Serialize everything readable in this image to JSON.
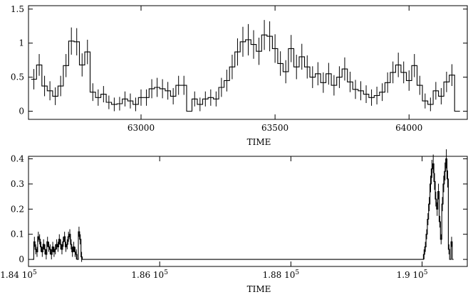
{
  "chart_data": [
    {
      "type": "line",
      "style": "histogram-step with error bars",
      "xlabel": "TIME",
      "ylabel": "",
      "xlim": [
        62580,
        64220
      ],
      "ylim": [
        -0.12,
        1.55
      ],
      "x_ticks": [
        63000,
        63500,
        64000
      ],
      "x_tick_labels": [
        "63000",
        "63500",
        "64000"
      ],
      "y_ticks": [
        0,
        0.5,
        1,
        1.5
      ],
      "y_tick_labels": [
        "0",
        "0.5",
        "1",
        "1.5"
      ],
      "series": [
        {
          "bin_width": 20,
          "x_start": 62590,
          "values": [
            0.47,
            0.68,
            0.37,
            0.3,
            0.22,
            0.37,
            0.67,
            1.03,
            1.02,
            0.68,
            0.87,
            0.28,
            0.2,
            0.25,
            0.13,
            0.1,
            0.11,
            0.18,
            0.15,
            0.1,
            0.2,
            0.2,
            0.33,
            0.35,
            0.33,
            0.3,
            0.22,
            0.38,
            0.38,
            0.0,
            0.18,
            0.1,
            0.18,
            0.2,
            0.18,
            0.35,
            0.45,
            0.65,
            0.87,
            1.02,
            1.05,
            0.98,
            0.88,
            1.12,
            1.1,
            0.92,
            0.7,
            0.58,
            0.92,
            0.65,
            0.8,
            0.65,
            0.5,
            0.55,
            0.42,
            0.55,
            0.38,
            0.5,
            0.62,
            0.43,
            0.32,
            0.3,
            0.25,
            0.2,
            0.23,
            0.28,
            0.42,
            0.57,
            0.68,
            0.57,
            0.45,
            0.67,
            0.38,
            0.15,
            0.1,
            0.3,
            0.22,
            0.43,
            0.53,
            0.0
          ],
          "errors": [
            0.15,
            0.16,
            0.15,
            0.14,
            0.13,
            0.15,
            0.17,
            0.2,
            0.2,
            0.17,
            0.18,
            0.13,
            0.12,
            0.12,
            0.1,
            0.1,
            0.1,
            0.11,
            0.11,
            0.1,
            0.12,
            0.12,
            0.14,
            0.14,
            0.14,
            0.13,
            0.12,
            0.14,
            0.14,
            0.1,
            0.11,
            0.1,
            0.11,
            0.12,
            0.11,
            0.14,
            0.16,
            0.18,
            0.2,
            0.22,
            0.23,
            0.21,
            0.2,
            0.22,
            0.22,
            0.21,
            0.18,
            0.17,
            0.2,
            0.18,
            0.19,
            0.17,
            0.16,
            0.17,
            0.15,
            0.16,
            0.15,
            0.16,
            0.17,
            0.15,
            0.14,
            0.14,
            0.13,
            0.12,
            0.13,
            0.13,
            0.15,
            0.16,
            0.18,
            0.16,
            0.15,
            0.17,
            0.14,
            0.11,
            0.1,
            0.13,
            0.12,
            0.15,
            0.16,
            0.0
          ]
        }
      ]
    },
    {
      "type": "line",
      "style": "histogram-step with error bars",
      "xlabel": "TIME",
      "ylabel": "",
      "xlim": [
        184000,
        190700
      ],
      "ylim": [
        -0.028,
        0.41
      ],
      "x_ticks": [
        184000,
        186000,
        188000,
        190000
      ],
      "x_tick_labels": [
        "1.84 10",
        "1.86 10",
        "1.88 10",
        "1.9 10"
      ],
      "x_tick_exponent": "5",
      "y_ticks": [
        0,
        0.1,
        0.2,
        0.3,
        0.4
      ],
      "y_tick_labels": [
        "0",
        "0.1",
        "0.2",
        "0.3",
        "0.4"
      ],
      "series": [
        {
          "bin_width": 20,
          "segments": [
            {
              "x_start": 184060,
              "values": [
                0.0,
                0.07,
                0.04,
                0.03,
                0.09,
                0.08,
                0.05,
                0.03,
                0.06,
                0.04,
                0.02,
                0.07,
                0.05,
                0.04,
                0.02,
                0.05,
                0.03,
                0.04,
                0.06,
                0.05,
                0.08,
                0.06,
                0.04,
                0.07,
                0.09,
                0.05,
                0.06,
                0.09,
                0.1,
                0.06,
                0.03,
                0.05,
                0.03,
                0.02,
                0.0,
                0.11,
                0.08,
                0.01,
                0.0
              ]
            },
            {
              "x_start": 190000,
              "values": [
                0.0,
                0.02,
                0.05,
                0.1,
                0.16,
                0.22,
                0.3,
                0.36,
                0.38,
                0.31,
                0.24,
                0.2,
                0.27,
                0.15,
                0.08,
                0.22,
                0.3,
                0.35,
                0.4,
                0.32,
                0.04,
                0.0,
                0.07,
                0.0
              ]
            }
          ],
          "gap_value": 0.0
        }
      ]
    }
  ]
}
